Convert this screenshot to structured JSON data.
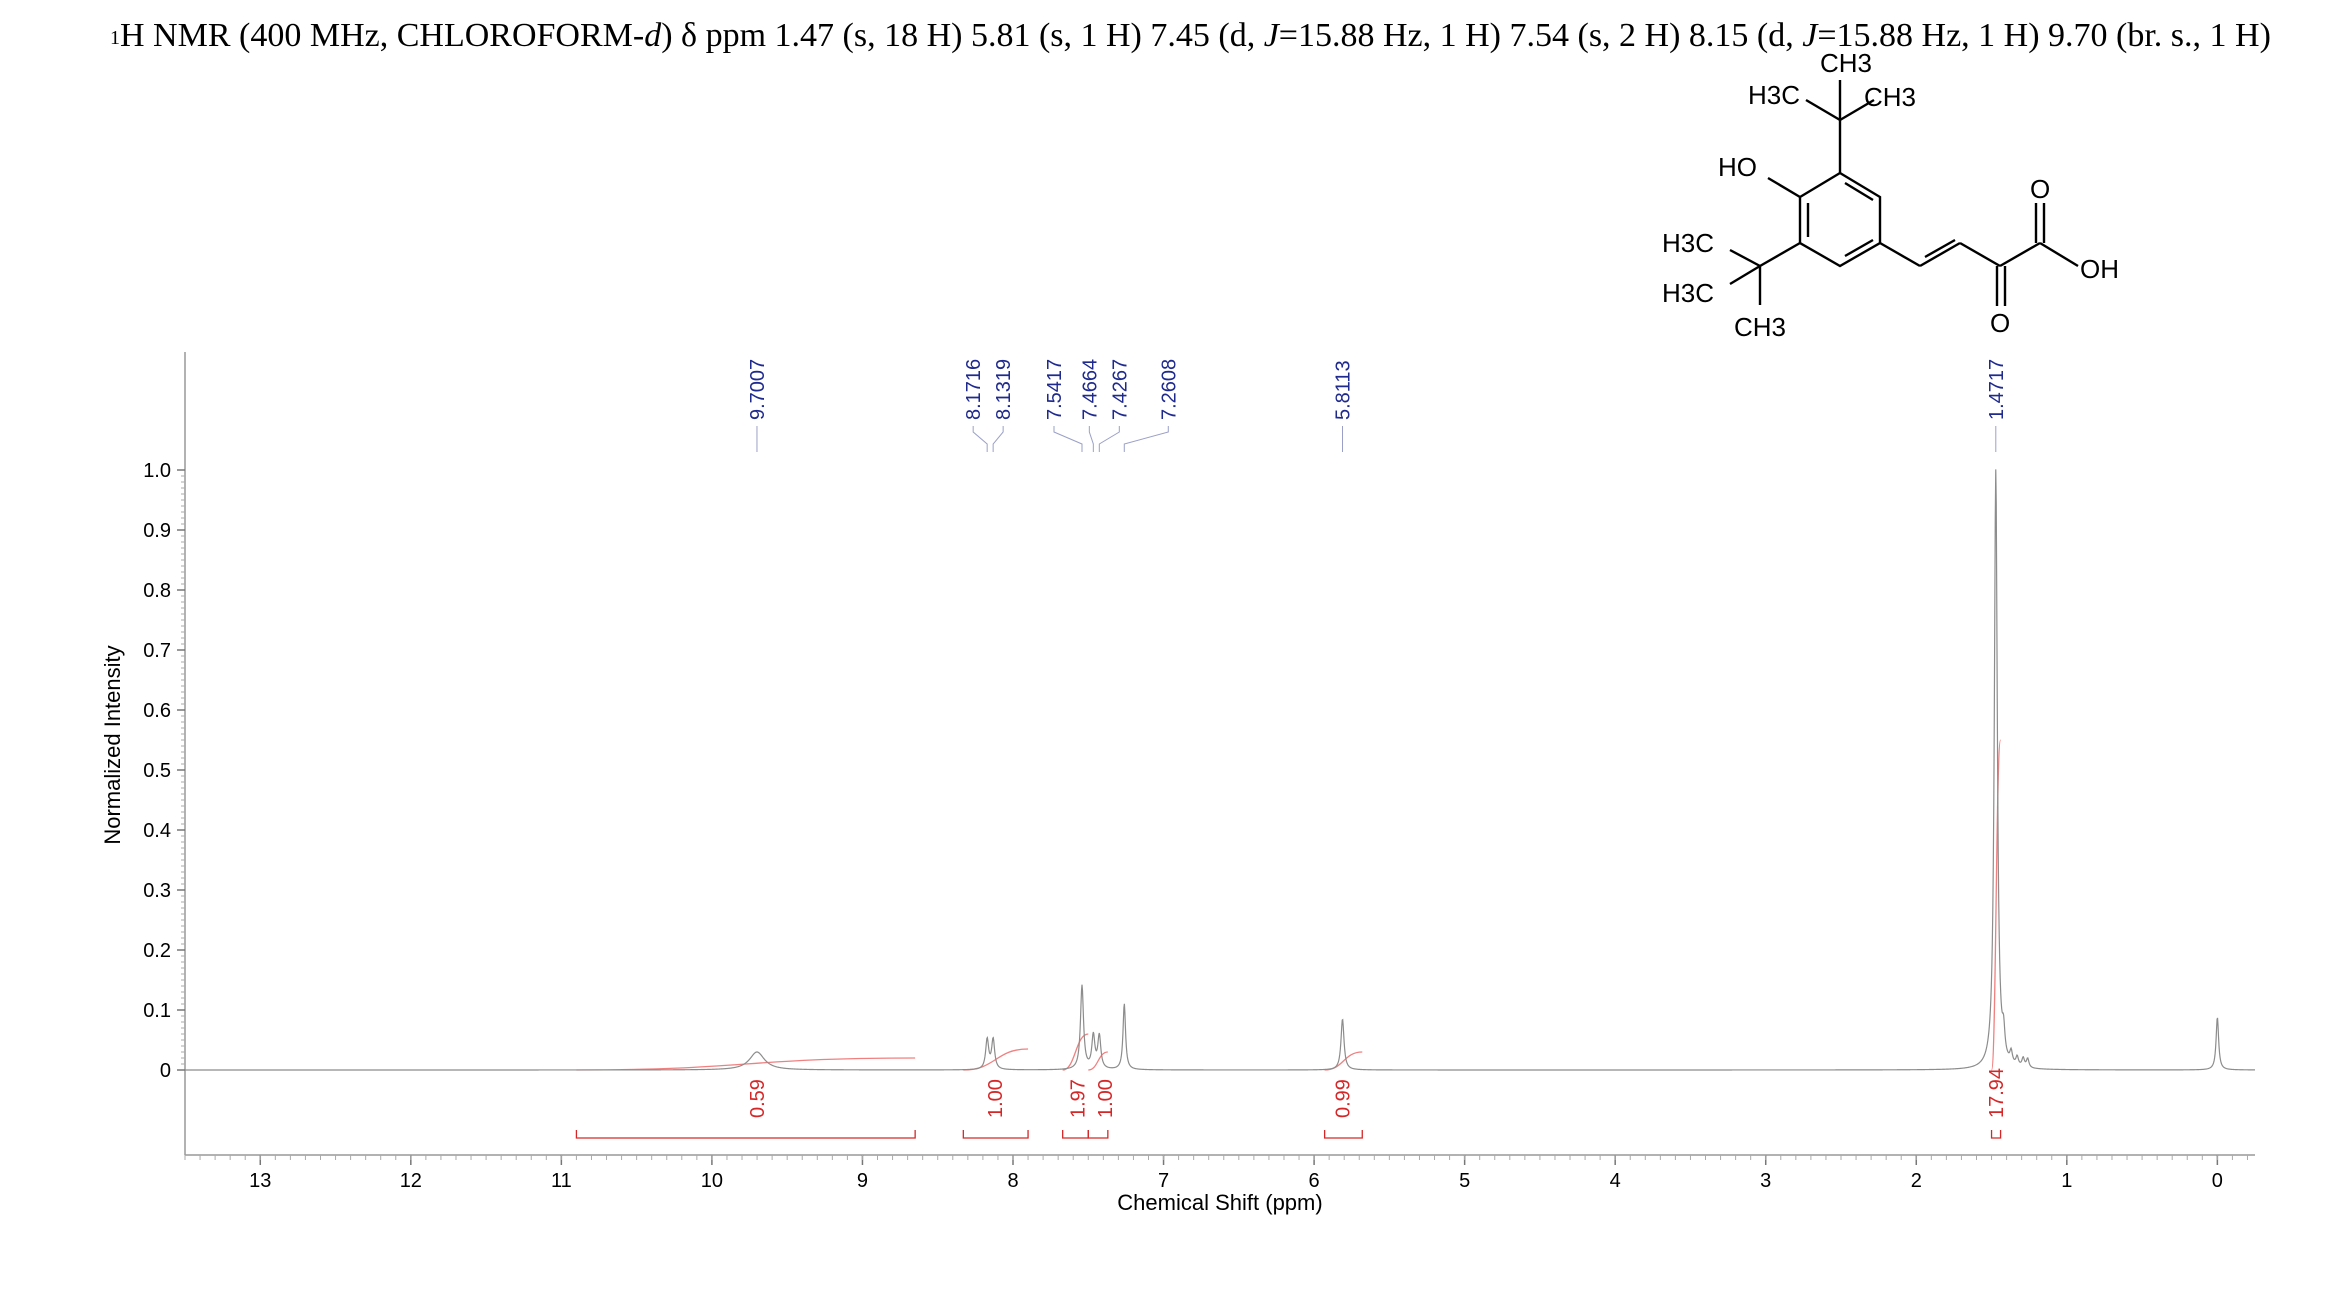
{
  "chart_data": {
    "type": "line",
    "title": {
      "superscript": "1",
      "main": "H NMR (400 MHz, CHLOROFORM-",
      "solvent_d": "d",
      "after_solvent": ") ",
      "delta": "δ",
      "data": " ppm 1.47 (s, 18 H) 5.81 (s, 1 H) 7.45 (d, ",
      "j1": "J",
      "data2": "=15.88 Hz, 1 H) 7.54 (s, 2 H) 8.15 (d, ",
      "j2": "J",
      "data3": "=15.88 Hz, 1 H) 9.70 (br. s., 1 H)"
    },
    "xlabel": "Chemical Shift (ppm)",
    "ylabel": "Normalized Intensity",
    "xlim": [
      13.5,
      -0.25
    ],
    "ylim": [
      -0.12,
      1.2
    ],
    "x_ticks": [
      "13",
      "12",
      "11",
      "10",
      "9",
      "8",
      "7",
      "6",
      "5",
      "4",
      "3",
      "2",
      "1",
      "0"
    ],
    "y_ticks": [
      "0",
      "0.1",
      "0.2",
      "0.3",
      "0.4",
      "0.5",
      "0.6",
      "0.7",
      "0.8",
      "0.9",
      "1.0"
    ],
    "peaks": [
      {
        "shift": 9.7007,
        "label": "9.7007",
        "height": 0.03,
        "width": 0.06
      },
      {
        "shift": 8.1716,
        "label": "8.1716",
        "height": 0.05,
        "width": 0.012
      },
      {
        "shift": 8.1319,
        "label": "8.1319",
        "height": 0.05,
        "width": 0.012
      },
      {
        "shift": 7.5417,
        "label": "7.5417",
        "height": 0.14,
        "width": 0.012
      },
      {
        "shift": 7.4664,
        "label": "7.4664",
        "height": 0.055,
        "width": 0.012
      },
      {
        "shift": 7.4267,
        "label": "7.4267",
        "height": 0.055,
        "width": 0.012
      },
      {
        "shift": 7.2608,
        "label": "7.2608",
        "height": 0.11,
        "width": 0.01
      },
      {
        "shift": 5.8113,
        "label": "5.8113",
        "height": 0.085,
        "width": 0.012
      },
      {
        "shift": 1.4717,
        "label": "1.4717",
        "height": 1.0,
        "width": 0.012
      },
      {
        "shift": 0.0,
        "label": "",
        "height": 0.088,
        "width": 0.01
      }
    ],
    "minor_peaks": [
      {
        "shift": 1.42,
        "height": 0.04
      },
      {
        "shift": 1.37,
        "height": 0.02
      },
      {
        "shift": 1.33,
        "height": 0.015
      },
      {
        "shift": 1.29,
        "height": 0.015
      },
      {
        "shift": 1.26,
        "height": 0.015
      }
    ],
    "integrals": [
      {
        "from": 10.9,
        "to": 8.65,
        "value": "0.59",
        "label_shift": 9.7,
        "curve_top": 0.02
      },
      {
        "from": 8.33,
        "to": 7.9,
        "value": "1.00",
        "label_shift": 8.12,
        "curve_top": 0.035
      },
      {
        "from": 7.67,
        "to": 7.5,
        "value": "1.97",
        "label_shift": 7.57,
        "curve_top": 0.06
      },
      {
        "from": 7.5,
        "to": 7.37,
        "value": "1.00",
        "label_shift": 7.39,
        "curve_top": 0.03
      },
      {
        "from": 5.93,
        "to": 5.68,
        "value": "0.99",
        "label_shift": 5.81,
        "curve_top": 0.03
      },
      {
        "from": 1.5,
        "to": 1.44,
        "value": "17.94",
        "label_shift": 1.47,
        "curve_top": 0.55
      }
    ],
    "colors": {
      "spectrum": "#8c8c8c",
      "peak_label": "#1f2a8f",
      "integral": "#d62728",
      "integral_curve": "#f08080",
      "axis": "#555555"
    }
  },
  "structure": {
    "labels": {
      "ch3_top": "CH3",
      "h3c_top": "H3C",
      "ch3_top_right": "CH3",
      "ho": "HO",
      "h3c_mid": "H3C",
      "h3c_low": "H3C",
      "ch3_low": "CH3",
      "o_top": "O",
      "oh": "OH",
      "o_bottom": "O"
    }
  }
}
